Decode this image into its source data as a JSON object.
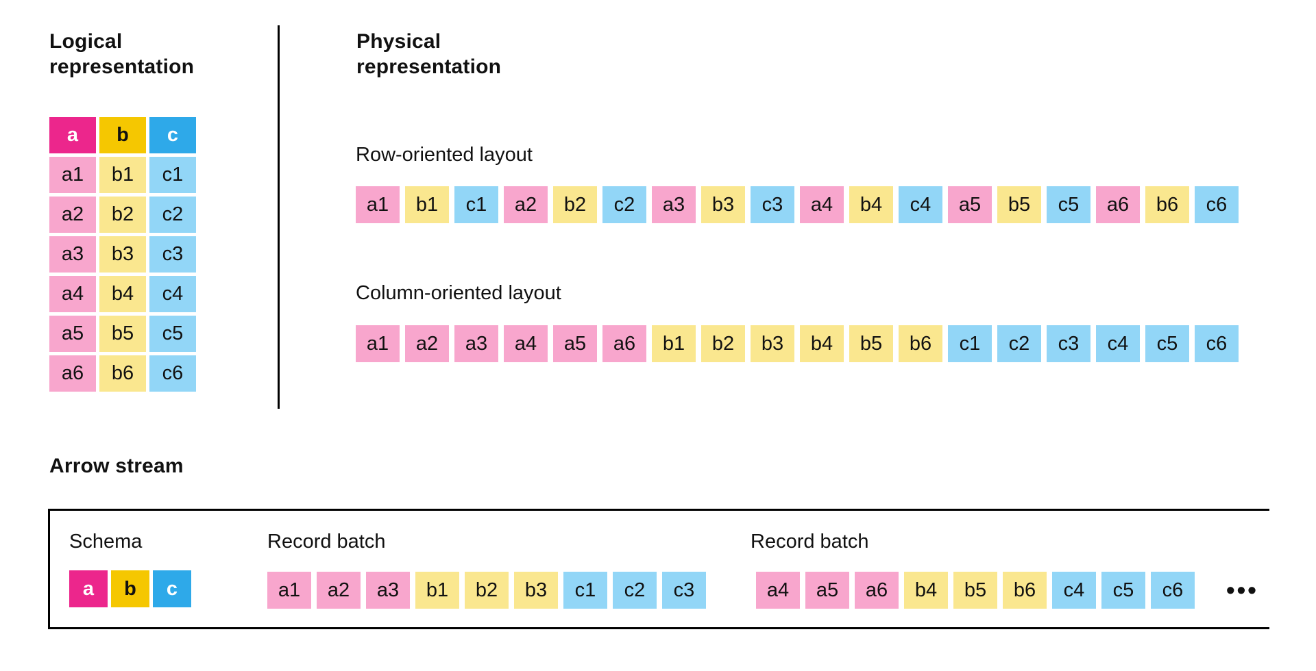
{
  "colors": {
    "pink": "#EC268C",
    "gold": "#F5C701",
    "blue": "#2EA9E9",
    "pink_light": "#F8A6CD",
    "gold_light": "#FAE78F",
    "blue_light": "#92D6F7",
    "text": "#111111",
    "line": "#000000"
  },
  "logical": {
    "title": "Logical\nrepresentation",
    "table": {
      "headers": [
        "a",
        "b",
        "c"
      ],
      "rows": [
        [
          "a1",
          "b1",
          "c1"
        ],
        [
          "a2",
          "b2",
          "c2"
        ],
        [
          "a3",
          "b3",
          "c3"
        ],
        [
          "a4",
          "b4",
          "c4"
        ],
        [
          "a5",
          "b5",
          "c5"
        ],
        [
          "a6",
          "b6",
          "c6"
        ]
      ]
    }
  },
  "physical": {
    "title": "Physical\nrepresentation",
    "row_oriented": {
      "label": "Row-oriented layout",
      "cells": [
        "a1",
        "b1",
        "c1",
        "a2",
        "b2",
        "c2",
        "a3",
        "b3",
        "c3",
        "a4",
        "b4",
        "c4",
        "a5",
        "b5",
        "c5",
        "a6",
        "b6",
        "c6"
      ]
    },
    "column_oriented": {
      "label": "Column-oriented layout",
      "cells": [
        "a1",
        "a2",
        "a3",
        "a4",
        "a5",
        "a6",
        "b1",
        "b2",
        "b3",
        "b4",
        "b5",
        "b6",
        "c1",
        "c2",
        "c3",
        "c4",
        "c5",
        "c6"
      ]
    }
  },
  "arrow_stream": {
    "title": "Arrow stream",
    "schema": {
      "label": "Schema",
      "cells": [
        "a",
        "b",
        "c"
      ]
    },
    "record_batches": [
      {
        "label": "Record batch",
        "cells": [
          "a1",
          "a2",
          "a3",
          "b1",
          "b2",
          "b3",
          "c1",
          "c2",
          "c3"
        ]
      },
      {
        "label": "Record batch",
        "cells": [
          "a4",
          "a5",
          "a6",
          "b4",
          "b5",
          "b6",
          "c4",
          "c5",
          "c6"
        ]
      }
    ],
    "ellipsis": "•••"
  }
}
